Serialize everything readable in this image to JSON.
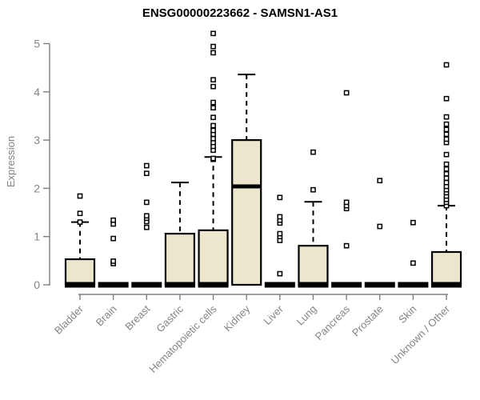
{
  "chart_data": {
    "type": "box",
    "title": "ENSG00000223662 - SAMSN1-AS1",
    "ylabel": "Expression",
    "xlabel": "",
    "ylim": [
      0,
      5
    ],
    "yticks": [
      0,
      1,
      2,
      3,
      4,
      5
    ],
    "grid": false,
    "legend": "none",
    "categories": [
      "Bladder",
      "Brain",
      "Breast",
      "Gastric",
      "Hematopoietic cells",
      "Kidney",
      "Liver",
      "Lung",
      "Pancreas",
      "Prostate",
      "Skin",
      "Unknown / Other"
    ],
    "boxes": [
      {
        "category": "Bladder",
        "q1": 0,
        "median": 0,
        "q3": 0.53,
        "whisker_low": 0,
        "whisker_high": 1.3,
        "outliers": [
          1.3,
          1.48,
          1.84
        ]
      },
      {
        "category": "Brain",
        "q1": 0,
        "median": 0,
        "q3": 0,
        "whisker_low": 0,
        "whisker_high": 0,
        "outliers": [
          0.44,
          0.49,
          0.96,
          1.26,
          1.34
        ]
      },
      {
        "category": "Breast",
        "q1": 0,
        "median": 0,
        "q3": 0,
        "whisker_low": 0,
        "whisker_high": 0,
        "outliers": [
          1.19,
          1.31,
          1.38,
          1.43,
          1.71,
          2.31,
          2.47
        ]
      },
      {
        "category": "Gastric",
        "q1": 0,
        "median": 0,
        "q3": 1.06,
        "whisker_low": 0,
        "whisker_high": 2.12,
        "outliers": []
      },
      {
        "category": "Hematopoietic cells",
        "q1": 0,
        "median": 0,
        "q3": 1.13,
        "whisker_low": 0,
        "whisker_high": 2.65,
        "outliers": [
          2.6,
          2.62,
          2.79,
          2.87,
          2.95,
          3.03,
          3.12,
          3.2,
          3.3,
          3.47,
          3.67,
          3.78,
          4.11,
          4.25,
          4.81,
          4.94,
          5.21
        ]
      },
      {
        "category": "Kidney",
        "q1": 0,
        "median": 2.04,
        "q3": 3.0,
        "whisker_low": 0,
        "whisker_high": 4.36,
        "outliers": []
      },
      {
        "category": "Liver",
        "q1": 0,
        "median": 0,
        "q3": 0,
        "whisker_low": 0,
        "whisker_high": 0,
        "outliers": [
          0.23,
          0.92,
          1.0,
          1.06,
          1.28,
          1.34,
          1.41,
          1.81
        ]
      },
      {
        "category": "Lung",
        "q1": 0,
        "median": 0,
        "q3": 0.81,
        "whisker_low": 0,
        "whisker_high": 1.72,
        "outliers": [
          1.97,
          2.75
        ]
      },
      {
        "category": "Pancreas",
        "q1": 0,
        "median": 0,
        "q3": 0,
        "whisker_low": 0,
        "whisker_high": 0,
        "outliers": [
          0.81,
          1.58,
          1.64,
          1.71,
          3.98
        ]
      },
      {
        "category": "Prostate",
        "q1": 0,
        "median": 0,
        "q3": 0,
        "whisker_low": 0,
        "whisker_high": 0,
        "outliers": [
          1.21,
          2.16
        ]
      },
      {
        "category": "Skin",
        "q1": 0,
        "median": 0,
        "q3": 0,
        "whisker_low": 0,
        "whisker_high": 0,
        "outliers": [
          0.45,
          1.29
        ]
      },
      {
        "category": "Unknown / Other",
        "q1": 0,
        "median": 0,
        "q3": 0.68,
        "whisker_low": 0,
        "whisker_high": 1.64,
        "outliers": [
          1.64,
          1.71,
          1.77,
          1.84,
          1.91,
          1.97,
          2.04,
          2.12,
          2.21,
          2.3,
          2.4,
          2.5,
          2.7,
          2.95,
          3.02,
          3.12,
          3.22,
          3.33,
          3.48,
          3.86,
          4.56
        ]
      }
    ],
    "colors": {
      "box_fill": "#ece6cd",
      "box_stroke": "#000000",
      "median": "#000000",
      "whisker": "#000000",
      "outlier_fill": "#ffffff",
      "outlier_stroke": "#000000",
      "axis": "#7f7f7f",
      "tick_label": "#848484",
      "title": "#000000"
    }
  }
}
